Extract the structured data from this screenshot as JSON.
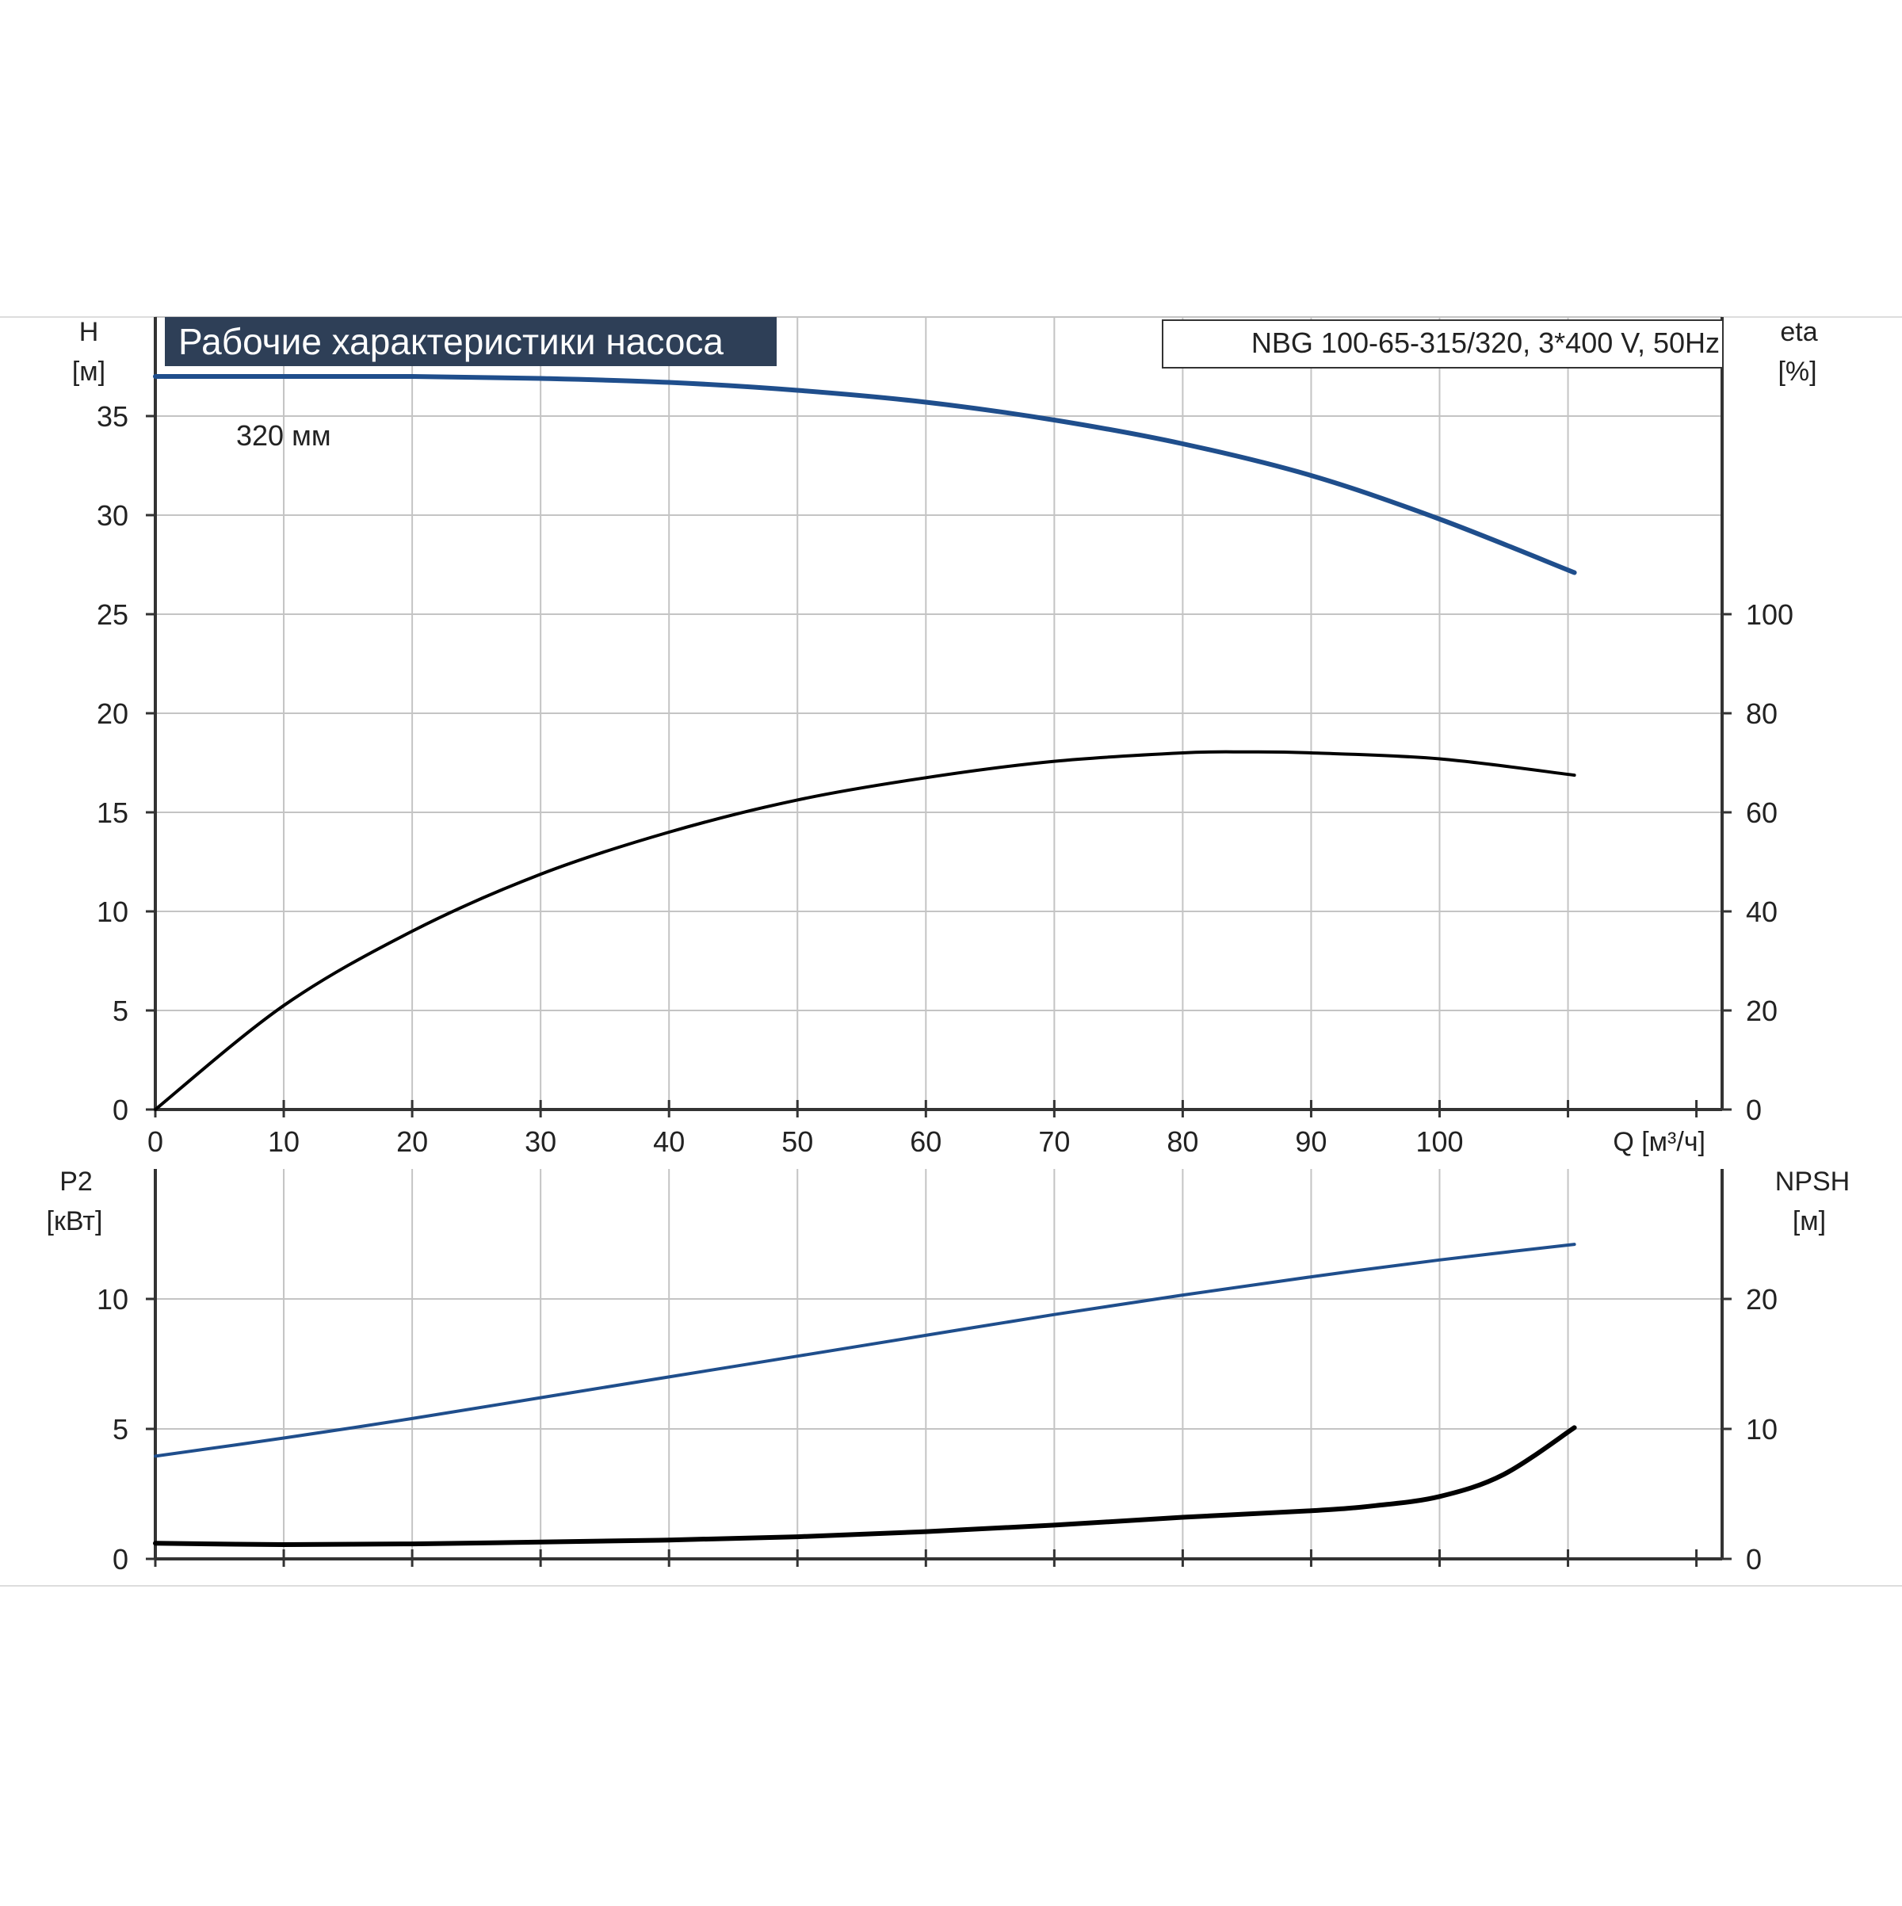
{
  "chart_data": [
    {
      "id": "upper",
      "type": "line",
      "title": "Рабочие характеристики насоса",
      "model_label": "NBG 100-65-315/320, 3*400 V, 50Hz",
      "ylabel_left": "H",
      "ylabel_left_unit": "[м]",
      "ylabel_right": "eta",
      "ylabel_right_unit": "[%]",
      "xlabel": "Q [м³/ч]",
      "xlim": [
        0,
        122
      ],
      "ylim_left": [
        0,
        40
      ],
      "ylim_right": [
        0,
        160
      ],
      "x_ticks": [
        "0",
        "10",
        "20",
        "30",
        "40",
        "50",
        "60",
        "70",
        "80",
        "90",
        "100"
      ],
      "y_ticks_left": [
        "0",
        "5",
        "10",
        "15",
        "20",
        "25",
        "30",
        "35"
      ],
      "y_ticks_right": [
        "0",
        "20",
        "40",
        "60",
        "80",
        "100"
      ],
      "grid": true,
      "annotations": [
        {
          "text": "320 мм"
        }
      ],
      "series": [
        {
          "axis": "left",
          "color": "#1f4e8c",
          "x": [
            0,
            10,
            20,
            30,
            40,
            50,
            60,
            70,
            80,
            90,
            100,
            110.5
          ],
          "y": [
            37.0,
            37.0,
            37.0,
            36.9,
            36.7,
            36.3,
            35.7,
            34.8,
            33.6,
            32.0,
            29.8,
            27.1
          ]
        },
        {
          "axis": "right",
          "color": "#000000",
          "x": [
            0,
            10,
            20,
            30,
            40,
            50,
            60,
            70,
            80,
            85,
            90,
            100,
            110.5
          ],
          "y": [
            0,
            21,
            36,
            47.5,
            56,
            62.5,
            67,
            70.3,
            72,
            72.2,
            72,
            70.8,
            67.5
          ]
        }
      ]
    },
    {
      "id": "lower",
      "type": "line",
      "ylabel_left": "P2",
      "ylabel_left_unit": "[кВт]",
      "ylabel_right": "NPSH",
      "ylabel_right_unit": "[м]",
      "xlim": [
        0,
        122
      ],
      "ylim_left": [
        0,
        15
      ],
      "ylim_right": [
        0,
        30
      ],
      "y_ticks_left": [
        "0",
        "5",
        "10"
      ],
      "y_ticks_right": [
        "0",
        "10",
        "20"
      ],
      "grid": true,
      "series": [
        {
          "axis": "left",
          "color": "#1f4e8c",
          "x": [
            0,
            10,
            20,
            30,
            40,
            50,
            60,
            70,
            80,
            90,
            100,
            110.5
          ],
          "y": [
            3.95,
            4.65,
            5.4,
            6.2,
            7.0,
            7.8,
            8.6,
            9.4,
            10.15,
            10.85,
            11.5,
            12.1
          ]
        },
        {
          "axis": "right",
          "color": "#000000",
          "x": [
            0,
            10,
            20,
            30,
            40,
            50,
            60,
            70,
            80,
            90,
            95,
            100,
            105,
            110.5
          ],
          "y": [
            1.2,
            1.1,
            1.15,
            1.3,
            1.45,
            1.7,
            2.1,
            2.6,
            3.2,
            3.7,
            4.1,
            4.8,
            6.5,
            10.1
          ]
        }
      ]
    }
  ]
}
